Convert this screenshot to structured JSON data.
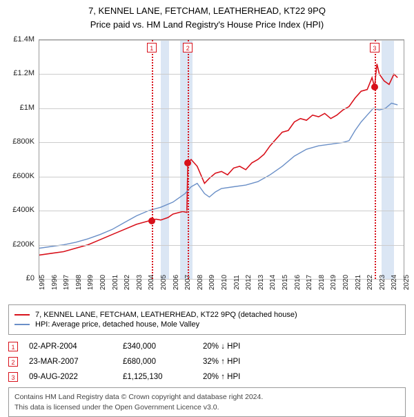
{
  "title_line1": "7, KENNEL LANE, FETCHAM, LEATHERHEAD, KT22 9PQ",
  "title_line2": "Price paid vs. HM Land Registry's House Price Index (HPI)",
  "chart": {
    "type": "line",
    "background_color": "#ffffff",
    "grid_color": "#cccccc",
    "axis_color": "#999999",
    "x_min": 1995,
    "x_max": 2025,
    "x_ticks": [
      1995,
      1996,
      1997,
      1998,
      1999,
      2000,
      2001,
      2002,
      2003,
      2004,
      2005,
      2006,
      2007,
      2008,
      2009,
      2010,
      2011,
      2012,
      2013,
      2014,
      2015,
      2016,
      2017,
      2018,
      2019,
      2020,
      2021,
      2022,
      2023,
      2024,
      2025
    ],
    "y_min": 0,
    "y_max": 1400000,
    "y_ticks": [
      {
        "v": 0,
        "label": "£0"
      },
      {
        "v": 200000,
        "label": "£200K"
      },
      {
        "v": 400000,
        "label": "£400K"
      },
      {
        "v": 600000,
        "label": "£600K"
      },
      {
        "v": 800000,
        "label": "£800K"
      },
      {
        "v": 1000000,
        "label": "£1M"
      },
      {
        "v": 1200000,
        "label": "£1.2M"
      },
      {
        "v": 1400000,
        "label": "£1.4M"
      }
    ],
    "shaded_ranges": [
      {
        "x0": 2005.0,
        "x1": 2005.7,
        "color": "#dbe6f4"
      },
      {
        "x0": 2006.6,
        "x1": 2007.6,
        "color": "#dbe6f4"
      },
      {
        "x0": 2023.2,
        "x1": 2024.2,
        "color": "#dbe6f4"
      }
    ],
    "event_lines": [
      {
        "x": 2004.25,
        "num": "1"
      },
      {
        "x": 2007.23,
        "num": "2"
      },
      {
        "x": 2022.61,
        "num": "3"
      }
    ],
    "event_markers": [
      {
        "x": 2004.25,
        "y": 340000
      },
      {
        "x": 2007.23,
        "y": 680000
      },
      {
        "x": 2022.61,
        "y": 1125130
      }
    ],
    "series": [
      {
        "name": "price_paid",
        "color": "#d8101a",
        "width": 1.6,
        "data": [
          [
            1995,
            140000
          ],
          [
            1996,
            150000
          ],
          [
            1997,
            160000
          ],
          [
            1998,
            180000
          ],
          [
            1999,
            200000
          ],
          [
            2000,
            230000
          ],
          [
            2001,
            260000
          ],
          [
            2002,
            290000
          ],
          [
            2003,
            320000
          ],
          [
            2004,
            340000
          ],
          [
            2004.6,
            350000
          ],
          [
            2005,
            345000
          ],
          [
            2005.6,
            360000
          ],
          [
            2006,
            380000
          ],
          [
            2006.8,
            395000
          ],
          [
            2007.15,
            390000
          ],
          [
            2007.23,
            680000
          ],
          [
            2007.5,
            700000
          ],
          [
            2008,
            660000
          ],
          [
            2008.6,
            560000
          ],
          [
            2009,
            590000
          ],
          [
            2009.5,
            620000
          ],
          [
            2010,
            630000
          ],
          [
            2010.5,
            610000
          ],
          [
            2011,
            650000
          ],
          [
            2011.5,
            660000
          ],
          [
            2012,
            640000
          ],
          [
            2012.5,
            680000
          ],
          [
            2013,
            700000
          ],
          [
            2013.5,
            730000
          ],
          [
            2014,
            780000
          ],
          [
            2014.5,
            820000
          ],
          [
            2015,
            860000
          ],
          [
            2015.5,
            870000
          ],
          [
            2016,
            920000
          ],
          [
            2016.5,
            940000
          ],
          [
            2017,
            930000
          ],
          [
            2017.5,
            960000
          ],
          [
            2018,
            950000
          ],
          [
            2018.5,
            970000
          ],
          [
            2019,
            940000
          ],
          [
            2019.5,
            960000
          ],
          [
            2020,
            990000
          ],
          [
            2020.5,
            1010000
          ],
          [
            2021,
            1060000
          ],
          [
            2021.5,
            1100000
          ],
          [
            2022,
            1110000
          ],
          [
            2022.4,
            1180000
          ],
          [
            2022.6,
            1125130
          ],
          [
            2022.8,
            1260000
          ],
          [
            2023,
            1200000
          ],
          [
            2023.4,
            1160000
          ],
          [
            2023.8,
            1140000
          ],
          [
            2024.2,
            1200000
          ],
          [
            2024.5,
            1180000
          ]
        ]
      },
      {
        "name": "hpi",
        "color": "#6a8fc7",
        "width": 1.4,
        "data": [
          [
            1995,
            180000
          ],
          [
            1996,
            190000
          ],
          [
            1997,
            200000
          ],
          [
            1998,
            215000
          ],
          [
            1999,
            235000
          ],
          [
            2000,
            260000
          ],
          [
            2001,
            290000
          ],
          [
            2002,
            330000
          ],
          [
            2003,
            370000
          ],
          [
            2004,
            400000
          ],
          [
            2005,
            420000
          ],
          [
            2006,
            450000
          ],
          [
            2007,
            500000
          ],
          [
            2007.5,
            540000
          ],
          [
            2008,
            560000
          ],
          [
            2008.6,
            500000
          ],
          [
            2009,
            480000
          ],
          [
            2009.5,
            510000
          ],
          [
            2010,
            530000
          ],
          [
            2011,
            540000
          ],
          [
            2012,
            550000
          ],
          [
            2013,
            570000
          ],
          [
            2014,
            610000
          ],
          [
            2015,
            660000
          ],
          [
            2016,
            720000
          ],
          [
            2017,
            760000
          ],
          [
            2018,
            780000
          ],
          [
            2019,
            790000
          ],
          [
            2020,
            800000
          ],
          [
            2020.5,
            810000
          ],
          [
            2021,
            870000
          ],
          [
            2021.5,
            920000
          ],
          [
            2022,
            960000
          ],
          [
            2022.5,
            1000000
          ],
          [
            2023,
            990000
          ],
          [
            2023.5,
            1000000
          ],
          [
            2024,
            1030000
          ],
          [
            2024.5,
            1020000
          ]
        ]
      }
    ],
    "tick_fontsize": 11,
    "line_dash_event": "3,3",
    "event_box_border": "#d8101a",
    "marker_radius": 5
  },
  "legend": {
    "items": [
      {
        "color": "#d8101a",
        "label": "7, KENNEL LANE, FETCHAM, LEATHERHEAD, KT22 9PQ (detached house)"
      },
      {
        "color": "#6a8fc7",
        "label": "HPI: Average price, detached house, Mole Valley"
      }
    ]
  },
  "events": [
    {
      "num": "1",
      "date": "02-APR-2004",
      "price": "£340,000",
      "pct": "20%",
      "direction": "down",
      "suffix": "HPI"
    },
    {
      "num": "2",
      "date": "23-MAR-2007",
      "price": "£680,000",
      "pct": "32%",
      "direction": "up",
      "suffix": "HPI"
    },
    {
      "num": "3",
      "date": "09-AUG-2022",
      "price": "£1,125,130",
      "pct": "20%",
      "direction": "up",
      "suffix": "HPI"
    }
  ],
  "attribution_line1": "Contains HM Land Registry data © Crown copyright and database right 2024.",
  "attribution_line2": "This data is licensed under the Open Government Licence v3.0."
}
